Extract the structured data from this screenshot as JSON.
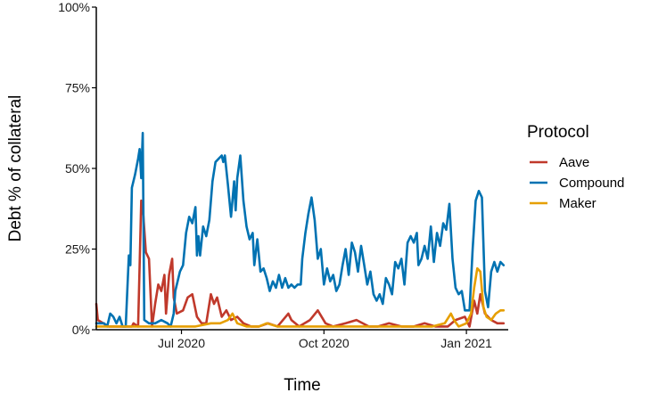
{
  "chart_data": {
    "type": "line",
    "title": "",
    "xlabel": "Time",
    "ylabel": "Debt % of collateral",
    "x_ticks": [
      "Jul 2020",
      "Oct 2020",
      "Jan 2021"
    ],
    "y_ticks": [
      "0%",
      "25%",
      "50%",
      "75%",
      "100%"
    ],
    "xlim": [
      "2020-05-07",
      "2021-01-28"
    ],
    "ylim": [
      0,
      100
    ],
    "legend_title": "Protocol",
    "legend_position": "right",
    "grid": false,
    "series": [
      {
        "name": "Aave",
        "color": "#C0392B",
        "points": [
          [
            "2020-05-07",
            8
          ],
          [
            "2020-05-08",
            3
          ],
          [
            "2020-05-15",
            1
          ],
          [
            "2020-05-30",
            1
          ],
          [
            "2020-05-31",
            2
          ],
          [
            "2020-06-03",
            1
          ],
          [
            "2020-06-05",
            40
          ],
          [
            "2020-06-06",
            38
          ],
          [
            "2020-06-08",
            24
          ],
          [
            "2020-06-10",
            22
          ],
          [
            "2020-06-12",
            1
          ],
          [
            "2020-06-14",
            8
          ],
          [
            "2020-06-16",
            14
          ],
          [
            "2020-06-18",
            12
          ],
          [
            "2020-06-20",
            17
          ],
          [
            "2020-06-21",
            5
          ],
          [
            "2020-06-23",
            17
          ],
          [
            "2020-06-25",
            22
          ],
          [
            "2020-06-26",
            10
          ],
          [
            "2020-06-28",
            5
          ],
          [
            "2020-07-02",
            6
          ],
          [
            "2020-07-05",
            10
          ],
          [
            "2020-07-08",
            11
          ],
          [
            "2020-07-11",
            4
          ],
          [
            "2020-07-14",
            2
          ],
          [
            "2020-07-17",
            2
          ],
          [
            "2020-07-20",
            11
          ],
          [
            "2020-07-22",
            8
          ],
          [
            "2020-07-24",
            10
          ],
          [
            "2020-07-27",
            4
          ],
          [
            "2020-07-30",
            6
          ],
          [
            "2020-08-02",
            3
          ],
          [
            "2020-08-06",
            4
          ],
          [
            "2020-08-10",
            2
          ],
          [
            "2020-08-15",
            1
          ],
          [
            "2020-08-20",
            1
          ],
          [
            "2020-08-26",
            2
          ],
          [
            "2020-09-01",
            1
          ],
          [
            "2020-09-08",
            5
          ],
          [
            "2020-09-10",
            3
          ],
          [
            "2020-09-15",
            1
          ],
          [
            "2020-09-22",
            3
          ],
          [
            "2020-09-27",
            6
          ],
          [
            "2020-10-02",
            2
          ],
          [
            "2020-10-07",
            1
          ],
          [
            "2020-10-15",
            2
          ],
          [
            "2020-10-22",
            3
          ],
          [
            "2020-10-30",
            1
          ],
          [
            "2020-11-05",
            1
          ],
          [
            "2020-11-12",
            2
          ],
          [
            "2020-11-20",
            1
          ],
          [
            "2020-11-28",
            1
          ],
          [
            "2020-12-05",
            2
          ],
          [
            "2020-12-12",
            1
          ],
          [
            "2020-12-20",
            1
          ],
          [
            "2020-12-25",
            3
          ],
          [
            "2020-12-31",
            4
          ],
          [
            "2021-01-03",
            1
          ],
          [
            "2021-01-06",
            9
          ],
          [
            "2021-01-08",
            5
          ],
          [
            "2021-01-10",
            11
          ],
          [
            "2021-01-13",
            5
          ],
          [
            "2021-01-17",
            3
          ],
          [
            "2021-01-21",
            2
          ],
          [
            "2021-01-25",
            2
          ]
        ]
      },
      {
        "name": "Compound",
        "color": "#0072B2",
        "points": [
          [
            "2020-05-07",
            2
          ],
          [
            "2020-05-12",
            2
          ],
          [
            "2020-05-14",
            1
          ],
          [
            "2020-05-16",
            5
          ],
          [
            "2020-05-18",
            4
          ],
          [
            "2020-05-20",
            2
          ],
          [
            "2020-05-22",
            4
          ],
          [
            "2020-05-24",
            1
          ],
          [
            "2020-05-26",
            1
          ],
          [
            "2020-05-28",
            23
          ],
          [
            "2020-05-29",
            20
          ],
          [
            "2020-05-30",
            44
          ],
          [
            "2020-06-01",
            48
          ],
          [
            "2020-06-03",
            53
          ],
          [
            "2020-06-04",
            56
          ],
          [
            "2020-06-05",
            47
          ],
          [
            "2020-06-06",
            61
          ],
          [
            "2020-06-07",
            3
          ],
          [
            "2020-06-10",
            2
          ],
          [
            "2020-06-14",
            2
          ],
          [
            "2020-06-18",
            3
          ],
          [
            "2020-06-22",
            2
          ],
          [
            "2020-06-24",
            1
          ],
          [
            "2020-06-26",
            5
          ],
          [
            "2020-06-27",
            12
          ],
          [
            "2020-06-30",
            18
          ],
          [
            "2020-07-02",
            20
          ],
          [
            "2020-07-04",
            30
          ],
          [
            "2020-07-06",
            35
          ],
          [
            "2020-07-08",
            33
          ],
          [
            "2020-07-10",
            38
          ],
          [
            "2020-07-11",
            23
          ],
          [
            "2020-07-12",
            29
          ],
          [
            "2020-07-13",
            23
          ],
          [
            "2020-07-15",
            32
          ],
          [
            "2020-07-17",
            29
          ],
          [
            "2020-07-19",
            34
          ],
          [
            "2020-07-21",
            46
          ],
          [
            "2020-07-23",
            52
          ],
          [
            "2020-07-25",
            53
          ],
          [
            "2020-07-27",
            54
          ],
          [
            "2020-07-28",
            52
          ],
          [
            "2020-07-29",
            54
          ],
          [
            "2020-07-31",
            45
          ],
          [
            "2020-08-02",
            35
          ],
          [
            "2020-08-04",
            46
          ],
          [
            "2020-08-05",
            37
          ],
          [
            "2020-08-06",
            47
          ],
          [
            "2020-08-08",
            54
          ],
          [
            "2020-08-10",
            40
          ],
          [
            "2020-08-12",
            32
          ],
          [
            "2020-08-14",
            28
          ],
          [
            "2020-08-16",
            30
          ],
          [
            "2020-08-17",
            20
          ],
          [
            "2020-08-19",
            28
          ],
          [
            "2020-08-21",
            18
          ],
          [
            "2020-08-23",
            19
          ],
          [
            "2020-08-25",
            16
          ],
          [
            "2020-08-27",
            12
          ],
          [
            "2020-08-29",
            15
          ],
          [
            "2020-08-31",
            13
          ],
          [
            "2020-09-02",
            17
          ],
          [
            "2020-09-04",
            13
          ],
          [
            "2020-09-06",
            16
          ],
          [
            "2020-09-08",
            13
          ],
          [
            "2020-09-10",
            14
          ],
          [
            "2020-09-12",
            13
          ],
          [
            "2020-09-14",
            14
          ],
          [
            "2020-09-16",
            14
          ],
          [
            "2020-09-17",
            22
          ],
          [
            "2020-09-19",
            30
          ],
          [
            "2020-09-21",
            36
          ],
          [
            "2020-09-23",
            41
          ],
          [
            "2020-09-25",
            34
          ],
          [
            "2020-09-27",
            22
          ],
          [
            "2020-09-29",
            25
          ],
          [
            "2020-10-01",
            14
          ],
          [
            "2020-10-03",
            19
          ],
          [
            "2020-10-05",
            15
          ],
          [
            "2020-10-07",
            17
          ],
          [
            "2020-10-09",
            12
          ],
          [
            "2020-10-11",
            14
          ],
          [
            "2020-10-13",
            20
          ],
          [
            "2020-10-15",
            25
          ],
          [
            "2020-10-17",
            17
          ],
          [
            "2020-10-19",
            27
          ],
          [
            "2020-10-21",
            24
          ],
          [
            "2020-10-23",
            18
          ],
          [
            "2020-10-25",
            26
          ],
          [
            "2020-10-27",
            20
          ],
          [
            "2020-10-29",
            14
          ],
          [
            "2020-10-31",
            18
          ],
          [
            "2020-11-02",
            11
          ],
          [
            "2020-11-04",
            9
          ],
          [
            "2020-11-06",
            11
          ],
          [
            "2020-11-08",
            8
          ],
          [
            "2020-11-10",
            16
          ],
          [
            "2020-11-12",
            14
          ],
          [
            "2020-11-14",
            11
          ],
          [
            "2020-11-16",
            21
          ],
          [
            "2020-11-18",
            19
          ],
          [
            "2020-11-20",
            22
          ],
          [
            "2020-11-22",
            14
          ],
          [
            "2020-11-24",
            27
          ],
          [
            "2020-11-26",
            29
          ],
          [
            "2020-11-28",
            27
          ],
          [
            "2020-11-30",
            30
          ],
          [
            "2020-12-01",
            20
          ],
          [
            "2020-12-03",
            22
          ],
          [
            "2020-12-05",
            26
          ],
          [
            "2020-12-07",
            22
          ],
          [
            "2020-12-09",
            32
          ],
          [
            "2020-12-11",
            21
          ],
          [
            "2020-12-13",
            30
          ],
          [
            "2020-12-15",
            26
          ],
          [
            "2020-12-17",
            33
          ],
          [
            "2020-12-19",
            31
          ],
          [
            "2020-12-21",
            39
          ],
          [
            "2020-12-23",
            22
          ],
          [
            "2020-12-25",
            13
          ],
          [
            "2020-12-27",
            11
          ],
          [
            "2020-12-29",
            12
          ],
          [
            "2020-12-31",
            6
          ],
          [
            "2021-01-03",
            6
          ],
          [
            "2021-01-05",
            25
          ],
          [
            "2021-01-07",
            40
          ],
          [
            "2021-01-09",
            43
          ],
          [
            "2021-01-11",
            41
          ],
          [
            "2021-01-13",
            12
          ],
          [
            "2021-01-15",
            7
          ],
          [
            "2021-01-17",
            18
          ],
          [
            "2021-01-19",
            21
          ],
          [
            "2021-01-21",
            18
          ],
          [
            "2021-01-23",
            21
          ],
          [
            "2021-01-25",
            20
          ]
        ]
      },
      {
        "name": "Maker",
        "color": "#E69F00",
        "points": [
          [
            "2020-05-07",
            1
          ],
          [
            "2020-05-20",
            1
          ],
          [
            "2020-06-05",
            1
          ],
          [
            "2020-06-20",
            1
          ],
          [
            "2020-07-01",
            1
          ],
          [
            "2020-07-10",
            1
          ],
          [
            "2020-07-20",
            2
          ],
          [
            "2020-07-26",
            2
          ],
          [
            "2020-07-31",
            3
          ],
          [
            "2020-08-03",
            5
          ],
          [
            "2020-08-06",
            2
          ],
          [
            "2020-08-12",
            1
          ],
          [
            "2020-08-20",
            1
          ],
          [
            "2020-08-25",
            2
          ],
          [
            "2020-09-01",
            1
          ],
          [
            "2020-09-10",
            1
          ],
          [
            "2020-09-20",
            1
          ],
          [
            "2020-10-01",
            1
          ],
          [
            "2020-10-10",
            1
          ],
          [
            "2020-10-20",
            1
          ],
          [
            "2020-10-30",
            1
          ],
          [
            "2020-11-10",
            1
          ],
          [
            "2020-11-20",
            1
          ],
          [
            "2020-11-30",
            1
          ],
          [
            "2020-12-10",
            1
          ],
          [
            "2020-12-18",
            2
          ],
          [
            "2020-12-22",
            5
          ],
          [
            "2020-12-24",
            3
          ],
          [
            "2020-12-27",
            1
          ],
          [
            "2021-01-01",
            2
          ],
          [
            "2021-01-04",
            5
          ],
          [
            "2021-01-06",
            13
          ],
          [
            "2021-01-08",
            19
          ],
          [
            "2021-01-10",
            18
          ],
          [
            "2021-01-12",
            7
          ],
          [
            "2021-01-14",
            4
          ],
          [
            "2021-01-17",
            3
          ],
          [
            "2021-01-20",
            5
          ],
          [
            "2021-01-23",
            6
          ],
          [
            "2021-01-25",
            6
          ]
        ]
      }
    ]
  }
}
